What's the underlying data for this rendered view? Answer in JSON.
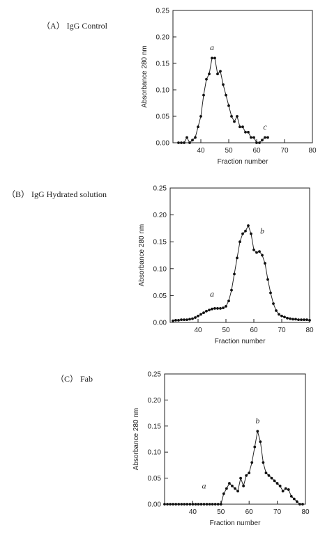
{
  "panels": [
    {
      "label": "（A） IgG Control"
    },
    {
      "label": "（B） IgG Hydrated solution"
    },
    {
      "label": "（C） Fab"
    }
  ],
  "chart_data": [
    {
      "type": "line",
      "title": "",
      "xlabel": "Fraction number",
      "ylabel": "Absorbance 280 nm",
      "xlim": [
        30,
        80
      ],
      "ylim": [
        0,
        0.25
      ],
      "xticks": [
        40,
        50,
        60,
        70,
        80
      ],
      "yticks": [
        0.0,
        0.05,
        0.1,
        0.15,
        0.2,
        0.25
      ],
      "grid": false,
      "series": [
        {
          "x": [
            32,
            33,
            34,
            35,
            36,
            37,
            38,
            39,
            40,
            41,
            42,
            43,
            44,
            45,
            46,
            47,
            48,
            49,
            50,
            51,
            52,
            53,
            54,
            55,
            56,
            57,
            58,
            59,
            60,
            61,
            62,
            63,
            64
          ],
          "y": [
            0.0,
            0.0,
            0.0,
            0.01,
            0.0,
            0.005,
            0.01,
            0.03,
            0.05,
            0.09,
            0.12,
            0.13,
            0.16,
            0.16,
            0.13,
            0.135,
            0.11,
            0.09,
            0.07,
            0.05,
            0.04,
            0.05,
            0.03,
            0.03,
            0.02,
            0.02,
            0.01,
            0.01,
            0.0,
            0.0,
            0.005,
            0.01,
            0.01
          ]
        }
      ],
      "annotations": [
        {
          "text": "a",
          "x": 44,
          "y": 0.175
        },
        {
          "text": "c",
          "x": 63,
          "y": 0.025
        }
      ]
    },
    {
      "type": "line",
      "title": "",
      "xlabel": "Fraction number",
      "ylabel": "Absorbance 280 nm",
      "xlim": [
        30,
        80
      ],
      "ylim": [
        0,
        0.25
      ],
      "xticks": [
        40,
        50,
        60,
        70,
        80
      ],
      "yticks": [
        0.0,
        0.05,
        0.1,
        0.15,
        0.2,
        0.25
      ],
      "grid": false,
      "series": [
        {
          "x": [
            31,
            32,
            33,
            34,
            35,
            36,
            37,
            38,
            39,
            40,
            41,
            42,
            43,
            44,
            45,
            46,
            47,
            48,
            49,
            50,
            51,
            52,
            53,
            54,
            55,
            56,
            57,
            58,
            59,
            60,
            61,
            62,
            63,
            64,
            65,
            66,
            67,
            68,
            69,
            70,
            71,
            72,
            73,
            74,
            75,
            76,
            77,
            78,
            79,
            80
          ],
          "y": [
            0.003,
            0.004,
            0.004,
            0.005,
            0.005,
            0.005,
            0.006,
            0.007,
            0.009,
            0.012,
            0.015,
            0.018,
            0.021,
            0.023,
            0.025,
            0.026,
            0.026,
            0.026,
            0.027,
            0.03,
            0.04,
            0.06,
            0.09,
            0.12,
            0.15,
            0.165,
            0.17,
            0.18,
            0.165,
            0.135,
            0.13,
            0.132,
            0.125,
            0.11,
            0.08,
            0.055,
            0.035,
            0.022,
            0.015,
            0.012,
            0.01,
            0.008,
            0.007,
            0.006,
            0.006,
            0.005,
            0.005,
            0.005,
            0.005,
            0.004
          ]
        }
      ],
      "annotations": [
        {
          "text": "b",
          "x": 63,
          "y": 0.165
        },
        {
          "text": "a",
          "x": 45,
          "y": 0.048
        }
      ]
    },
    {
      "type": "line",
      "title": "",
      "xlabel": "Fraction number",
      "ylabel": "Absorbance 280 nm",
      "xlim": [
        30,
        80
      ],
      "ylim": [
        0,
        0.25
      ],
      "xticks": [
        40,
        50,
        60,
        70,
        80
      ],
      "yticks": [
        0.0,
        0.05,
        0.1,
        0.15,
        0.2,
        0.25
      ],
      "grid": false,
      "series": [
        {
          "x": [
            30,
            31,
            32,
            33,
            34,
            35,
            36,
            37,
            38,
            39,
            40,
            41,
            42,
            43,
            44,
            45,
            46,
            47,
            48,
            49,
            50,
            51,
            52,
            53,
            54,
            55,
            56,
            57,
            58,
            59,
            60,
            61,
            62,
            63,
            64,
            65,
            66,
            67,
            68,
            69,
            70,
            71,
            72,
            73,
            74,
            75,
            76,
            77,
            78,
            79
          ],
          "y": [
            0,
            0,
            0,
            0,
            0,
            0,
            0,
            0,
            0,
            0,
            0,
            0,
            0,
            0,
            0,
            0,
            0,
            0,
            0,
            0,
            0,
            0.02,
            0.03,
            0.04,
            0.035,
            0.03,
            0.025,
            0.05,
            0.035,
            0.055,
            0.06,
            0.08,
            0.11,
            0.14,
            0.12,
            0.08,
            0.06,
            0.055,
            0.05,
            0.045,
            0.04,
            0.035,
            0.025,
            0.03,
            0.028,
            0.015,
            0.01,
            0.005,
            0.0,
            0.0
          ]
        }
      ],
      "annotations": [
        {
          "text": "b",
          "x": 63,
          "y": 0.155
        },
        {
          "text": "a",
          "x": 44,
          "y": 0.03
        }
      ]
    }
  ]
}
